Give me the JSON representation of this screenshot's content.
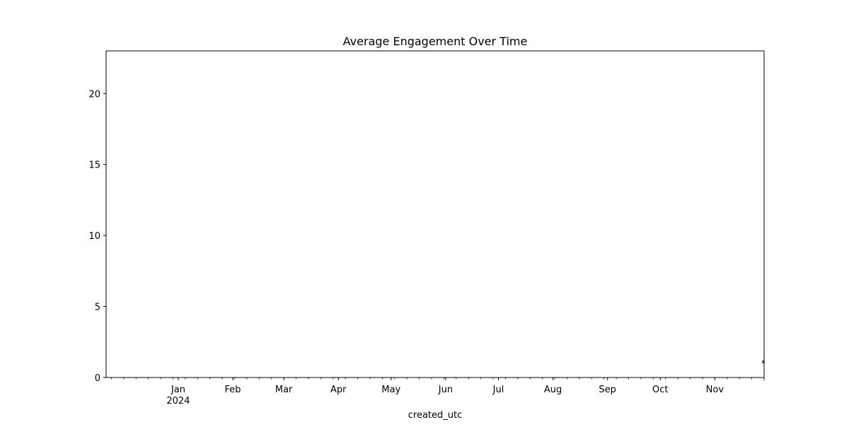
{
  "chart_data": {
    "type": "line",
    "title": "Average Engagement Over Time",
    "xlabel": "created_utc",
    "ylabel": "",
    "x_start": "2023-11-21",
    "x_end": "2024-11-29",
    "ylim": [
      0,
      23
    ],
    "y_ticks": [
      0,
      5,
      10,
      15,
      20
    ],
    "x_ticks": [
      {
        "date": "2024-01-01",
        "label": "Jan",
        "sublabel": "2024"
      },
      {
        "date": "2024-02-01",
        "label": "Feb",
        "sublabel": ""
      },
      {
        "date": "2024-03-01",
        "label": "Mar",
        "sublabel": ""
      },
      {
        "date": "2024-04-01",
        "label": "Apr",
        "sublabel": ""
      },
      {
        "date": "2024-05-01",
        "label": "May",
        "sublabel": ""
      },
      {
        "date": "2024-06-01",
        "label": "Jun",
        "sublabel": ""
      },
      {
        "date": "2024-07-01",
        "label": "Jul",
        "sublabel": ""
      },
      {
        "date": "2024-08-01",
        "label": "Aug",
        "sublabel": ""
      },
      {
        "date": "2024-09-01",
        "label": "Sep",
        "sublabel": ""
      },
      {
        "date": "2024-10-01",
        "label": "Oct",
        "sublabel": ""
      },
      {
        "date": "2024-11-01",
        "label": "Nov",
        "sublabel": ""
      }
    ],
    "grid": false,
    "legend": "none",
    "series": [
      {
        "color": "#1f77b4",
        "points": [
          {
            "x": "2024-11-28",
            "y": 1.0
          },
          {
            "x": "2024-11-28T12:00",
            "y": 1.2
          },
          {
            "x": "2024-11-29",
            "y": 1.0
          }
        ]
      }
    ]
  }
}
